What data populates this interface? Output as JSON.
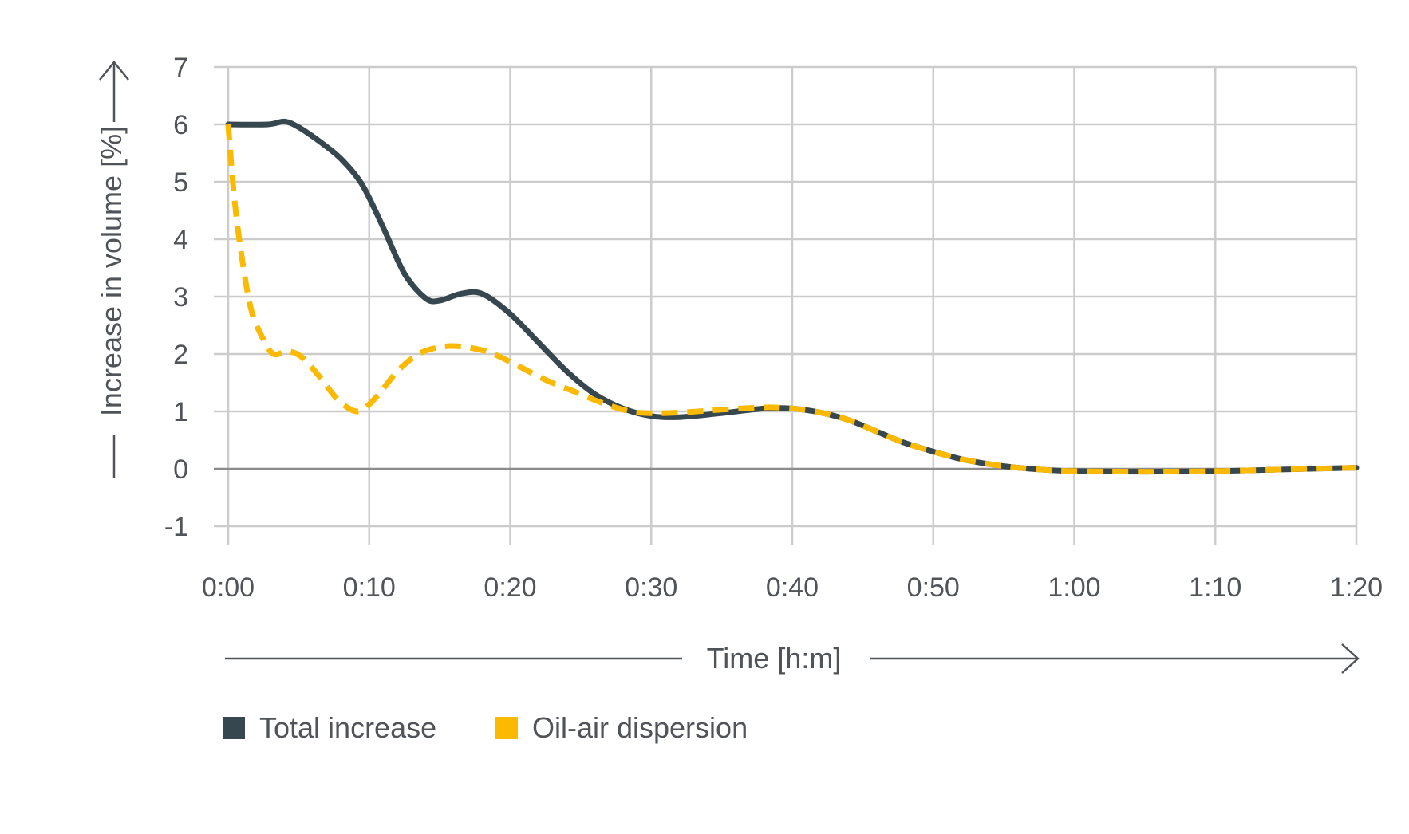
{
  "colors": {
    "total_increase": "#36474f",
    "oil_air_dispersion": "#fbb900",
    "grid": "#cccccc",
    "zero_line": "#8c8c8c",
    "text": "#505458",
    "axis_arrow": "#505458"
  },
  "chart_data": {
    "type": "line",
    "xlabel": "Time [h:m]",
    "ylabel": "Increase in volume [%]",
    "xlim": [
      0,
      80
    ],
    "ylim": [
      -1,
      7
    ],
    "grid": true,
    "legend_position": "bottom-left",
    "x_ticks": [
      {
        "value": 0,
        "label": "0:00"
      },
      {
        "value": 10,
        "label": "0:10"
      },
      {
        "value": 20,
        "label": "0:20"
      },
      {
        "value": 30,
        "label": "0:30"
      },
      {
        "value": 40,
        "label": "0:40"
      },
      {
        "value": 50,
        "label": "0:50"
      },
      {
        "value": 60,
        "label": "1:00"
      },
      {
        "value": 70,
        "label": "1:10"
      },
      {
        "value": 80,
        "label": "1:20"
      }
    ],
    "y_ticks": [
      {
        "value": 7,
        "label": "7"
      },
      {
        "value": 6,
        "label": "6"
      },
      {
        "value": 5,
        "label": "5"
      },
      {
        "value": 4,
        "label": "4"
      },
      {
        "value": 3,
        "label": "3"
      },
      {
        "value": 2,
        "label": "2"
      },
      {
        "value": 1,
        "label": "1"
      },
      {
        "value": 0,
        "label": "0"
      },
      {
        "value": -1,
        "label": "-1"
      }
    ],
    "series": [
      {
        "name": "Total increase",
        "style": "solid",
        "color": "#36474f",
        "points": [
          [
            0,
            6.0
          ],
          [
            2.8,
            6.0
          ],
          [
            4,
            6.05
          ],
          [
            5,
            5.95
          ],
          [
            6.5,
            5.7
          ],
          [
            8,
            5.4
          ],
          [
            9.5,
            4.95
          ],
          [
            11,
            4.2
          ],
          [
            12.5,
            3.4
          ],
          [
            14,
            2.97
          ],
          [
            15,
            2.93
          ],
          [
            16.5,
            3.05
          ],
          [
            18,
            3.05
          ],
          [
            20,
            2.7
          ],
          [
            22,
            2.2
          ],
          [
            24,
            1.7
          ],
          [
            26,
            1.3
          ],
          [
            28,
            1.05
          ],
          [
            30,
            0.92
          ],
          [
            32,
            0.9
          ],
          [
            35,
            0.97
          ],
          [
            38,
            1.05
          ],
          [
            40,
            1.05
          ],
          [
            42,
            0.98
          ],
          [
            44,
            0.85
          ],
          [
            46,
            0.65
          ],
          [
            48,
            0.45
          ],
          [
            50,
            0.3
          ],
          [
            52,
            0.17
          ],
          [
            54,
            0.08
          ],
          [
            56,
            0.02
          ],
          [
            58,
            -0.02
          ],
          [
            60,
            -0.04
          ],
          [
            65,
            -0.05
          ],
          [
            70,
            -0.04
          ],
          [
            75,
            -0.01
          ],
          [
            80,
            0.02
          ]
        ]
      },
      {
        "name": "Oil-air dispersion",
        "style": "dashed",
        "color": "#fbb900",
        "points": [
          [
            0,
            6.0
          ],
          [
            0.4,
            4.8
          ],
          [
            0.9,
            3.8
          ],
          [
            1.6,
            2.8
          ],
          [
            2.4,
            2.3
          ],
          [
            3.2,
            2.0
          ],
          [
            4.2,
            2.05
          ],
          [
            5.2,
            1.95
          ],
          [
            6.5,
            1.6
          ],
          [
            7.8,
            1.2
          ],
          [
            9.2,
            1.0
          ],
          [
            10.5,
            1.25
          ],
          [
            12,
            1.7
          ],
          [
            13.5,
            2.0
          ],
          [
            15,
            2.12
          ],
          [
            16.5,
            2.13
          ],
          [
            18.5,
            2.03
          ],
          [
            20.5,
            1.8
          ],
          [
            22.5,
            1.55
          ],
          [
            24.5,
            1.35
          ],
          [
            26.5,
            1.15
          ],
          [
            28.5,
            1.0
          ],
          [
            30,
            0.97
          ],
          [
            32,
            0.98
          ],
          [
            35,
            1.03
          ],
          [
            38,
            1.07
          ],
          [
            40,
            1.05
          ],
          [
            42,
            0.98
          ],
          [
            44,
            0.85
          ],
          [
            46,
            0.65
          ],
          [
            48,
            0.45
          ],
          [
            50,
            0.3
          ],
          [
            52,
            0.17
          ],
          [
            54,
            0.08
          ],
          [
            56,
            0.02
          ],
          [
            58,
            -0.02
          ],
          [
            60,
            -0.04
          ],
          [
            65,
            -0.05
          ],
          [
            70,
            -0.04
          ],
          [
            75,
            -0.01
          ],
          [
            80,
            0.02
          ]
        ]
      }
    ]
  }
}
